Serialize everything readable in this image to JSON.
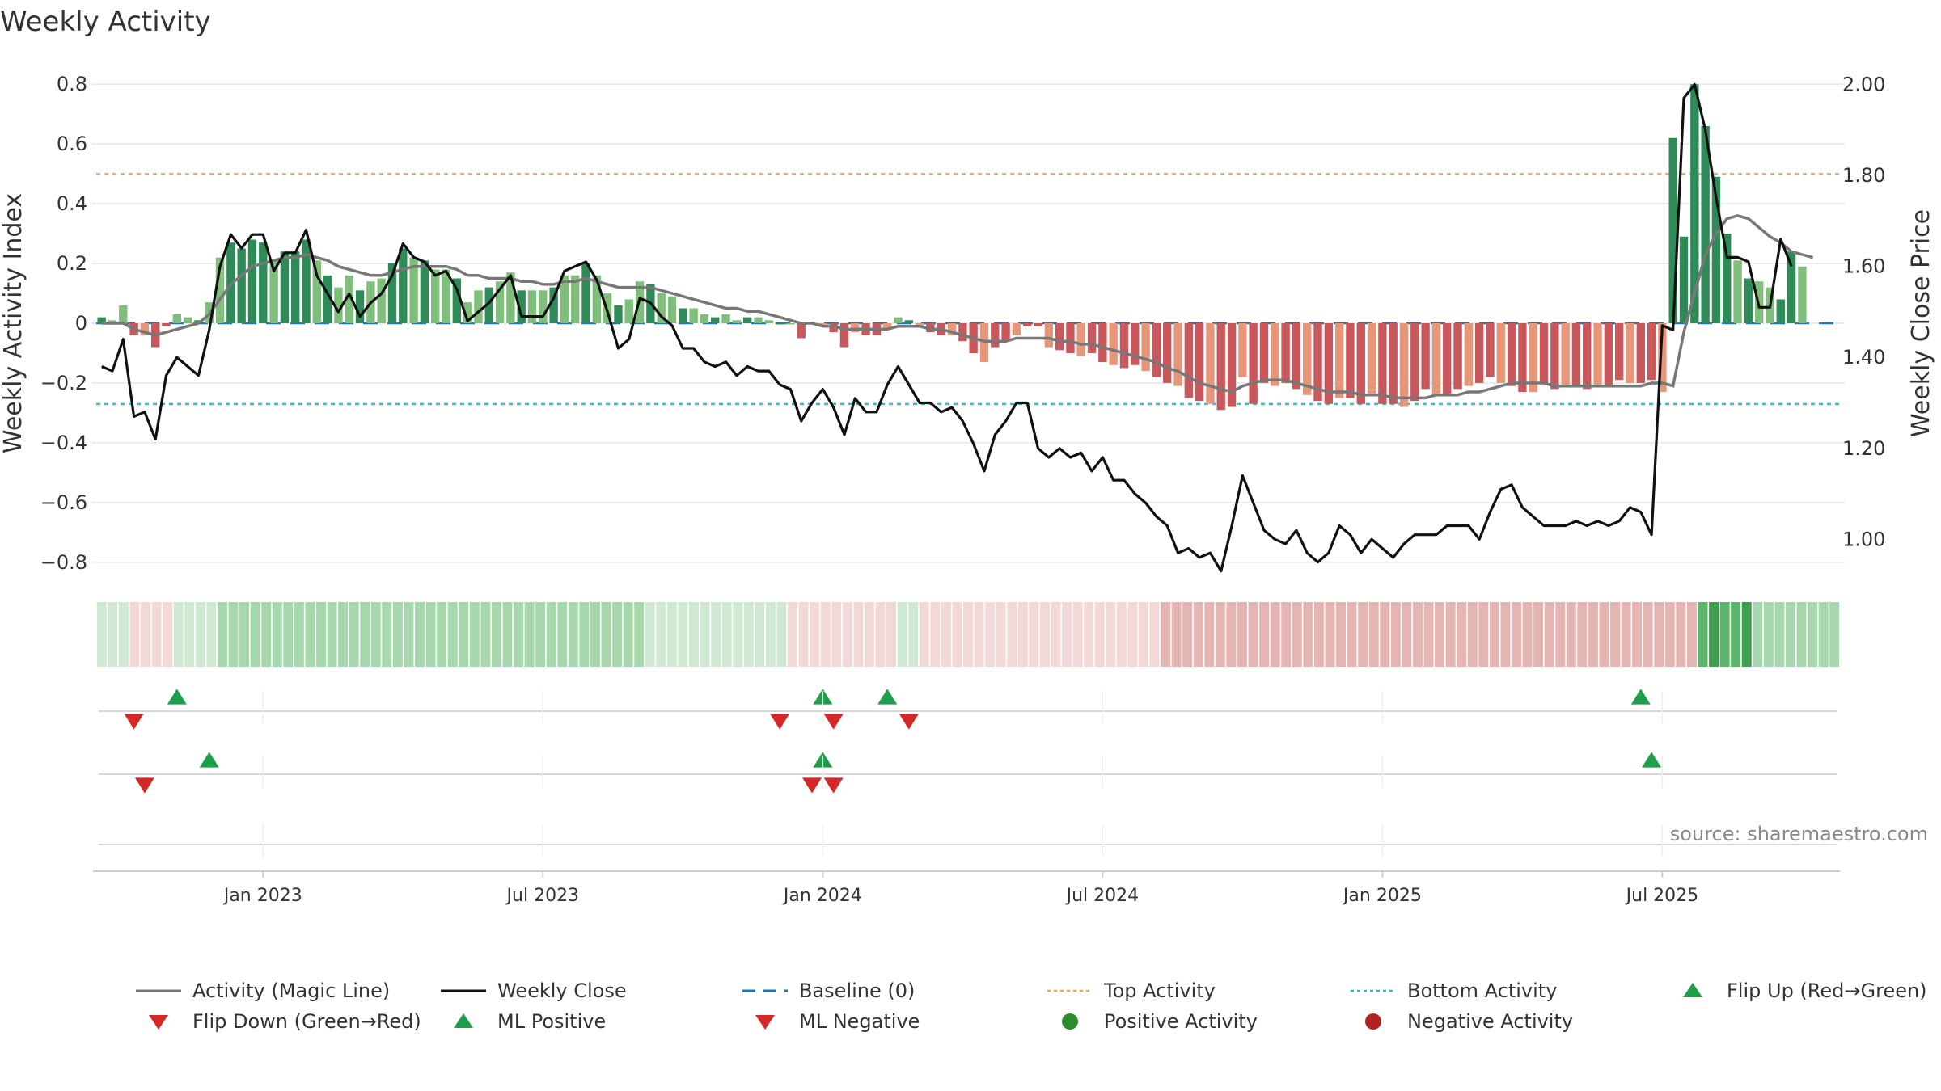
{
  "chart_data": {
    "type": "bar+line",
    "title": "Weekly Activity",
    "ylabel_left": "Weekly Activity Index",
    "ylabel_right": "Weekly Close Price",
    "source": "source: sharemaestro.com",
    "left_axis": {
      "ylim": [
        -0.86,
        0.86
      ],
      "ticks": [
        0.8,
        0.6,
        0.4,
        0.2,
        0,
        -0.2,
        -0.4,
        -0.6,
        -0.8
      ],
      "tick_labels": [
        "0.8",
        "0.6",
        "0.4",
        "0.2",
        "0",
        "−0.2",
        "−0.4",
        "−0.6",
        "−0.8"
      ]
    },
    "right_axis": {
      "ylim": [
        0.91,
        2.04
      ],
      "ticks": [
        2.0,
        1.8,
        1.6,
        1.4,
        1.2,
        1.0
      ],
      "tick_labels": [
        "2.00",
        "1.80",
        "1.60",
        "1.40",
        "1.20",
        "1.00"
      ]
    },
    "x_axis": {
      "start_week": 0,
      "end_week": 162,
      "tick_weeks": [
        15.5,
        41.5,
        67.5,
        93.5,
        119.5,
        145.5
      ],
      "tick_labels": [
        "Jan 2023",
        "Jul 2023",
        "Jan 2024",
        "Jul 2024",
        "Jan 2025",
        "Jul 2025"
      ]
    },
    "activity": [
      0.02,
      0.01,
      0.06,
      -0.04,
      -0.04,
      -0.08,
      -0.01,
      0.03,
      0.02,
      0.01,
      0.07,
      0.22,
      0.27,
      0.25,
      0.28,
      0.27,
      0.21,
      0.24,
      0.24,
      0.28,
      0.21,
      0.16,
      0.12,
      0.16,
      0.11,
      0.14,
      0.15,
      0.2,
      0.25,
      0.22,
      0.21,
      0.18,
      0.18,
      0.15,
      0.07,
      0.11,
      0.12,
      0.14,
      0.17,
      0.11,
      0.11,
      0.11,
      0.12,
      0.16,
      0.16,
      0.2,
      0.16,
      0.1,
      0.06,
      0.08,
      0.14,
      0.13,
      0.1,
      0.09,
      0.05,
      0.05,
      0.03,
      0.02,
      0.03,
      0.01,
      0.02,
      0.02,
      0.01,
      0.0,
      0.0,
      -0.05,
      0.0,
      -0.01,
      -0.03,
      -0.08,
      -0.03,
      -0.04,
      -0.04,
      -0.02,
      0.02,
      0.01,
      -0.01,
      -0.03,
      -0.04,
      -0.04,
      -0.06,
      -0.1,
      -0.13,
      -0.08,
      -0.06,
      -0.04,
      -0.01,
      -0.01,
      -0.08,
      -0.09,
      -0.1,
      -0.11,
      -0.1,
      -0.13,
      -0.14,
      -0.15,
      -0.14,
      -0.16,
      -0.18,
      -0.2,
      -0.21,
      -0.25,
      -0.26,
      -0.27,
      -0.29,
      -0.28,
      -0.18,
      -0.27,
      -0.2,
      -0.21,
      -0.2,
      -0.22,
      -0.24,
      -0.26,
      -0.27,
      -0.25,
      -0.25,
      -0.27,
      -0.24,
      -0.27,
      -0.27,
      -0.28,
      -0.26,
      -0.22,
      -0.24,
      -0.24,
      -0.22,
      -0.21,
      -0.2,
      -0.18,
      -0.2,
      -0.21,
      -0.23,
      -0.23,
      -0.2,
      -0.22,
      -0.21,
      -0.21,
      -0.22,
      -0.21,
      -0.21,
      -0.19,
      -0.2,
      -0.2,
      -0.19,
      -0.23,
      0.62,
      0.29,
      0.8,
      0.66,
      0.49,
      0.3,
      0.21,
      0.15,
      0.14,
      0.12,
      0.08,
      0.24,
      0.19
    ],
    "magic_line": [
      0.0,
      0.0,
      0.0,
      -0.02,
      -0.03,
      -0.04,
      -0.03,
      -0.02,
      -0.01,
      0.0,
      0.03,
      0.08,
      0.13,
      0.16,
      0.19,
      0.2,
      0.21,
      0.22,
      0.22,
      0.23,
      0.22,
      0.21,
      0.19,
      0.18,
      0.17,
      0.16,
      0.16,
      0.17,
      0.18,
      0.19,
      0.19,
      0.19,
      0.19,
      0.18,
      0.16,
      0.16,
      0.15,
      0.15,
      0.15,
      0.14,
      0.14,
      0.13,
      0.13,
      0.14,
      0.14,
      0.15,
      0.14,
      0.13,
      0.12,
      0.12,
      0.12,
      0.12,
      0.11,
      0.1,
      0.09,
      0.08,
      0.07,
      0.06,
      0.05,
      0.05,
      0.04,
      0.04,
      0.03,
      0.02,
      0.01,
      0.0,
      0.0,
      -0.01,
      -0.01,
      -0.02,
      -0.02,
      -0.02,
      -0.02,
      -0.02,
      -0.01,
      -0.01,
      -0.01,
      -0.02,
      -0.02,
      -0.03,
      -0.04,
      -0.05,
      -0.06,
      -0.06,
      -0.06,
      -0.05,
      -0.05,
      -0.05,
      -0.05,
      -0.06,
      -0.06,
      -0.07,
      -0.07,
      -0.08,
      -0.09,
      -0.1,
      -0.11,
      -0.12,
      -0.13,
      -0.15,
      -0.16,
      -0.18,
      -0.2,
      -0.21,
      -0.22,
      -0.23,
      -0.21,
      -0.2,
      -0.19,
      -0.19,
      -0.19,
      -0.2,
      -0.21,
      -0.22,
      -0.23,
      -0.23,
      -0.23,
      -0.24,
      -0.24,
      -0.24,
      -0.25,
      -0.25,
      -0.25,
      -0.25,
      -0.24,
      -0.24,
      -0.24,
      -0.23,
      -0.23,
      -0.22,
      -0.21,
      -0.2,
      -0.2,
      -0.2,
      -0.2,
      -0.21,
      -0.21,
      -0.21,
      -0.21,
      -0.21,
      -0.21,
      -0.21,
      -0.21,
      -0.21,
      -0.2,
      -0.2,
      -0.21,
      -0.03,
      0.1,
      0.23,
      0.3,
      0.35,
      0.36,
      0.35,
      0.32,
      0.29,
      0.27,
      0.24,
      0.23,
      0.22
    ],
    "weekly_close": [
      1.38,
      1.37,
      1.44,
      1.27,
      1.28,
      1.22,
      1.36,
      1.4,
      1.38,
      1.36,
      1.46,
      1.6,
      1.67,
      1.64,
      1.67,
      1.67,
      1.59,
      1.63,
      1.63,
      1.68,
      1.58,
      1.54,
      1.5,
      1.54,
      1.49,
      1.52,
      1.54,
      1.58,
      1.65,
      1.62,
      1.61,
      1.58,
      1.59,
      1.55,
      1.48,
      1.5,
      1.52,
      1.55,
      1.58,
      1.49,
      1.49,
      1.49,
      1.53,
      1.59,
      1.6,
      1.61,
      1.57,
      1.5,
      1.42,
      1.44,
      1.53,
      1.52,
      1.49,
      1.47,
      1.42,
      1.42,
      1.39,
      1.38,
      1.39,
      1.36,
      1.38,
      1.37,
      1.37,
      1.34,
      1.33,
      1.26,
      1.3,
      1.33,
      1.29,
      1.23,
      1.31,
      1.28,
      1.28,
      1.34,
      1.38,
      1.34,
      1.3,
      1.3,
      1.28,
      1.29,
      1.26,
      1.21,
      1.15,
      1.23,
      1.26,
      1.3,
      1.3,
      1.2,
      1.18,
      1.2,
      1.18,
      1.19,
      1.15,
      1.18,
      1.13,
      1.13,
      1.1,
      1.08,
      1.05,
      1.03,
      0.97,
      0.98,
      0.96,
      0.97,
      0.93,
      1.03,
      1.14,
      1.08,
      1.02,
      1.0,
      0.99,
      1.02,
      0.97,
      0.95,
      0.97,
      1.03,
      1.01,
      0.97,
      1.0,
      0.98,
      0.96,
      0.99,
      1.01,
      1.01,
      1.01,
      1.03,
      1.03,
      1.03,
      1.0,
      1.06,
      1.11,
      1.12,
      1.07,
      1.05,
      1.03,
      1.03,
      1.03,
      1.04,
      1.03,
      1.04,
      1.03,
      1.04,
      1.07,
      1.06,
      1.01,
      1.47,
      1.46,
      1.97,
      2.0,
      1.9,
      1.75,
      1.62,
      1.62,
      1.61,
      1.51,
      1.51,
      1.66,
      1.6
    ],
    "top_activity": 0.5,
    "bottom_activity": -0.27,
    "strip_level": [
      "lg",
      "lg",
      "lg",
      "lr",
      "lr",
      "lr",
      "lr",
      "lg",
      "lg",
      "lg",
      "lg",
      "mg",
      "mg",
      "mg",
      "mg",
      "mg",
      "mg",
      "mg",
      "mg",
      "mg",
      "mg",
      "mg",
      "mg",
      "mg",
      "mg",
      "mg",
      "mg",
      "mg",
      "mg",
      "mg",
      "mg",
      "mg",
      "mg",
      "mg",
      "mg",
      "mg",
      "mg",
      "mg",
      "mg",
      "mg",
      "mg",
      "mg",
      "mg",
      "mg",
      "mg",
      "mg",
      "mg",
      "mg",
      "mg",
      "mg",
      "lg",
      "lg",
      "lg",
      "lg",
      "lg",
      "lg",
      "lg",
      "lg",
      "lg",
      "lg",
      "lg",
      "lg",
      "lg",
      "lr",
      "lr",
      "lr",
      "lr",
      "lr",
      "lr",
      "lr",
      "lr",
      "lr",
      "lr",
      "lg",
      "lg",
      "lr",
      "lr",
      "lr",
      "lr",
      "lr",
      "lr",
      "lr",
      "lr",
      "lr",
      "lr",
      "lr",
      "lr",
      "lr",
      "lr",
      "lr",
      "lr",
      "lr",
      "lr",
      "lr",
      "lr",
      "lr",
      "lr",
      "mr",
      "mr",
      "mr",
      "mr",
      "mr",
      "mr",
      "mr",
      "mr",
      "mr",
      "mr",
      "mr",
      "mr",
      "mr",
      "mr",
      "mr",
      "mr",
      "mr",
      "mr",
      "mr",
      "mr",
      "mr",
      "mr",
      "mr",
      "mr",
      "mr",
      "mr",
      "mr",
      "mr",
      "mr",
      "mr",
      "mr",
      "mr",
      "mr",
      "mr",
      "mr",
      "mr",
      "mr",
      "mr",
      "mr",
      "mr",
      "mr",
      "mr",
      "mr",
      "mr",
      "mr",
      "mr",
      "mr",
      "mr",
      "mr",
      "dg",
      "sg",
      "dg",
      "dg",
      "sg",
      "mg",
      "mg",
      "mg",
      "mg",
      "mg",
      "mg",
      "mg",
      "mg"
    ],
    "flip_up": [
      7,
      67,
      73,
      143
    ],
    "flip_down": [
      3,
      63,
      68,
      75
    ],
    "ml_positive": [
      10,
      67,
      144
    ],
    "ml_negative": [
      4,
      66,
      68
    ],
    "legend": [
      {
        "key": "magic",
        "label": "Activity (Magic Line)"
      },
      {
        "key": "close",
        "label": "Weekly Close"
      },
      {
        "key": "baseline",
        "label": "Baseline (0)"
      },
      {
        "key": "top",
        "label": "Top Activity"
      },
      {
        "key": "bottom",
        "label": "Bottom Activity"
      },
      {
        "key": "flipup",
        "label": "Flip Up (Red→Green)"
      },
      {
        "key": "flipdown",
        "label": "Flip Down (Green→Red)"
      },
      {
        "key": "mlpos",
        "label": "ML Positive"
      },
      {
        "key": "mlneg",
        "label": "ML Negative"
      },
      {
        "key": "posact",
        "label": "Positive Activity"
      },
      {
        "key": "negact",
        "label": "Negative Activity"
      }
    ],
    "colors": {
      "bar_green_dark": "#2e8b57",
      "bar_green_light": "#7fbf7b",
      "bar_red_dark": "#c9585c",
      "bar_red_light": "#e8967a",
      "magic_line": "#777777",
      "close_line": "#111111",
      "baseline": "#1f77b4",
      "top_line": "#f4a460",
      "bottom_line": "#22c5d8",
      "flip_up": "#1e9e4a",
      "flip_down": "#d62728",
      "positive_dot": "#2a8c2a",
      "negative_dot": "#b22222",
      "grid": "#e6e6e6",
      "axis": "#cccccc"
    }
  }
}
